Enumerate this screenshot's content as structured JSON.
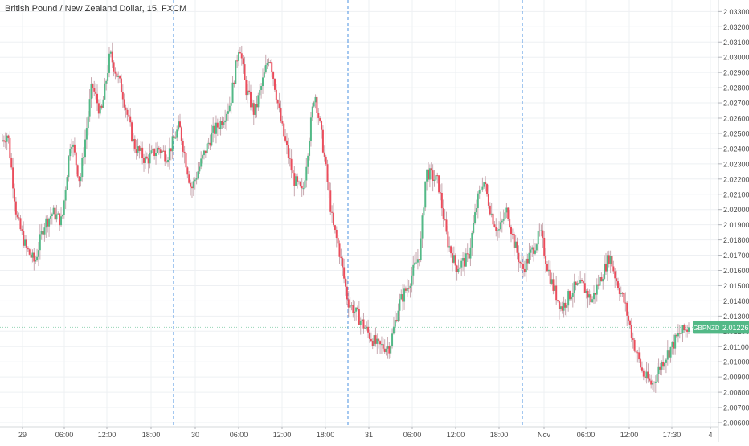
{
  "chart_data": {
    "type": "candlestick",
    "title": "British Pound / New Zealand Dollar, 15, FXCM",
    "symbol": "GBPNZD",
    "last_price": "2.01226",
    "colors": {
      "up": "#53b987",
      "down": "#eb4d5c",
      "wick": "#c8a9b0",
      "grid": "#eef0f3",
      "session_line": "#4a90e2",
      "badge": "#53b987",
      "axis_text": "#4a4a4a"
    },
    "ylim": [
      2.0055,
      2.0335
    ],
    "y_ticks": [
      "2.00600",
      "2.00700",
      "2.00800",
      "2.00900",
      "2.01000",
      "2.01100",
      "2.01200",
      "2.01300",
      "2.01400",
      "2.01500",
      "2.01600",
      "2.01700",
      "2.01800",
      "2.01900",
      "2.02000",
      "2.02100",
      "2.02200",
      "2.02300",
      "2.02400",
      "2.02500",
      "2.02600",
      "2.02700",
      "2.02800",
      "2.02900",
      "2.03000",
      "2.03100",
      "2.03200",
      "2.03300"
    ],
    "x_ticks": [
      "29",
      "06:00",
      "12:00",
      "18:00",
      "30",
      "06:00",
      "12:00",
      "18:00",
      "31",
      "06:00",
      "12:00",
      "18:00",
      "Nov",
      "06:00",
      "12:00",
      "17:30",
      "4"
    ],
    "session_breaks": [
      "30",
      "31",
      "Nov"
    ],
    "grid": true,
    "waypoints": [
      [
        0,
        2.0245
      ],
      [
        4,
        2.025
      ],
      [
        10,
        2.0195
      ],
      [
        16,
        2.0175
      ],
      [
        22,
        2.0165
      ],
      [
        28,
        2.019
      ],
      [
        34,
        2.0198
      ],
      [
        40,
        2.0192
      ],
      [
        46,
        2.0248
      ],
      [
        52,
        2.0218
      ],
      [
        60,
        2.0282
      ],
      [
        66,
        2.0262
      ],
      [
        72,
        2.0302
      ],
      [
        80,
        2.0278
      ],
      [
        88,
        2.0242
      ],
      [
        96,
        2.0232
      ],
      [
        104,
        2.024
      ],
      [
        110,
        2.0235
      ],
      [
        118,
        2.0255
      ],
      [
        126,
        2.0213
      ],
      [
        134,
        2.0235
      ],
      [
        140,
        2.025
      ],
      [
        146,
        2.0258
      ],
      [
        152,
        2.027
      ],
      [
        158,
        2.031
      ],
      [
        162,
        2.028
      ],
      [
        168,
        2.0263
      ],
      [
        178,
        2.0302
      ],
      [
        186,
        2.0255
      ],
      [
        194,
        2.022
      ],
      [
        200,
        2.021
      ],
      [
        208,
        2.0278
      ],
      [
        214,
        2.0238
      ],
      [
        220,
        2.019
      ],
      [
        224,
        2.0175
      ],
      [
        230,
        2.014
      ],
      [
        238,
        2.0128
      ],
      [
        244,
        2.0118
      ],
      [
        250,
        2.011
      ],
      [
        258,
        2.011
      ],
      [
        264,
        2.0138
      ],
      [
        270,
        2.015
      ],
      [
        278,
        2.0172
      ],
      [
        282,
        2.0225
      ],
      [
        290,
        2.0218
      ],
      [
        296,
        2.018
      ],
      [
        302,
        2.0162
      ],
      [
        310,
        2.0168
      ],
      [
        316,
        2.0205
      ],
      [
        320,
        2.022
      ],
      [
        326,
        2.0195
      ],
      [
        330,
        2.0185
      ],
      [
        336,
        2.02
      ],
      [
        340,
        2.018
      ],
      [
        346,
        2.016
      ],
      [
        352,
        2.0172
      ],
      [
        358,
        2.0185
      ],
      [
        362,
        2.0165
      ],
      [
        366,
        2.015
      ],
      [
        372,
        2.0135
      ],
      [
        380,
        2.0148
      ],
      [
        386,
        2.015
      ],
      [
        392,
        2.014
      ],
      [
        398,
        2.0155
      ],
      [
        404,
        2.017
      ],
      [
        408,
        2.0155
      ],
      [
        414,
        2.0138
      ],
      [
        420,
        2.0112
      ],
      [
        426,
        2.0092
      ],
      [
        432,
        2.0085
      ],
      [
        438,
        2.0098
      ],
      [
        444,
        2.0108
      ],
      [
        450,
        2.0118
      ],
      [
        456,
        2.0122
      ]
    ]
  }
}
